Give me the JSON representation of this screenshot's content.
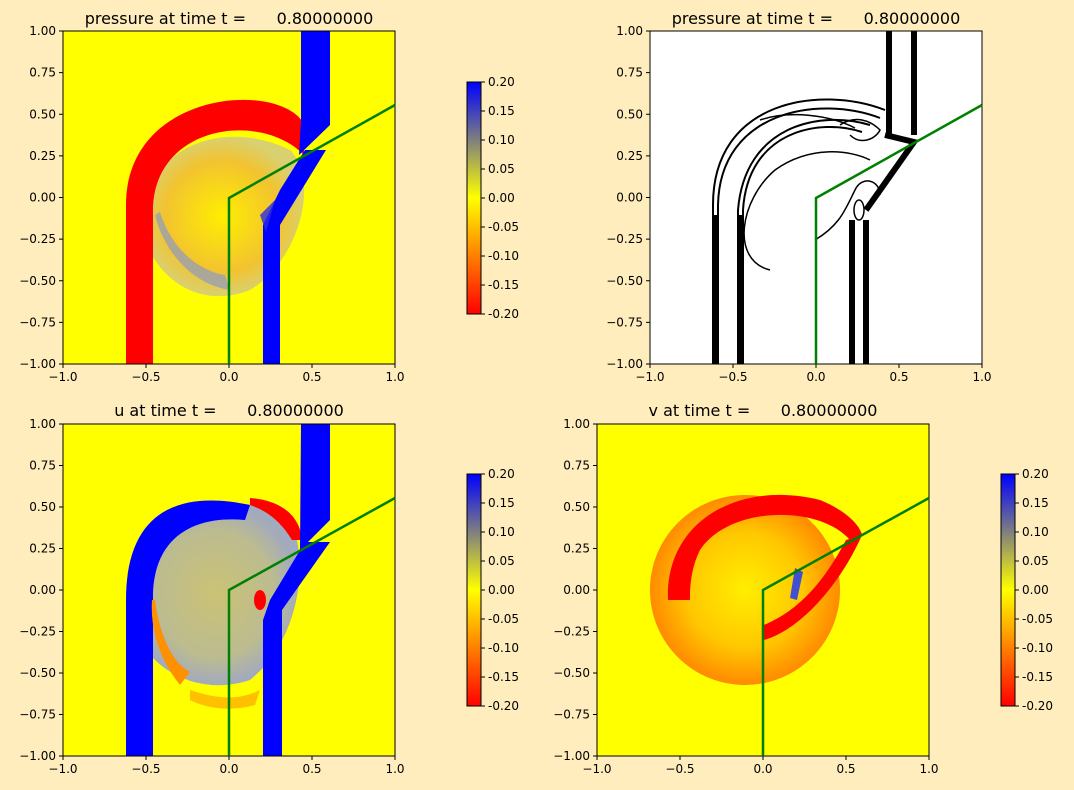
{
  "figure": {
    "background": "#ffedbd"
  },
  "colors": {
    "frame": "#000000",
    "boundary": "#008000",
    "colormap": [
      "#ff0000",
      "#ffff00",
      "#0000ff"
    ]
  },
  "colorbar": {
    "ticks": [
      "-0.20",
      "-0.15",
      "-0.10",
      "-0.05",
      "0.00",
      "0.05",
      "0.10",
      "0.15",
      "0.20"
    ],
    "vmin": -0.2,
    "vmax": 0.2
  },
  "chart_data": [
    {
      "id": "p-color",
      "type": "heatmap",
      "title": "pressure at time t =      0.80000000",
      "xlim": [
        -1,
        1
      ],
      "ylim": [
        -1,
        1
      ],
      "xticks": [
        "−1.0",
        "−0.5",
        "0.0",
        "0.5",
        "1.0"
      ],
      "yticks": [
        "−1.00",
        "−0.75",
        "−0.50",
        "−0.25",
        "0.00",
        "0.25",
        "0.50",
        "0.75",
        "1.00"
      ],
      "colorbar": true,
      "boundary": [
        [
          0,
          -1
        ],
        [
          0,
          0
        ],
        [
          1,
          0.55
        ]
      ]
    },
    {
      "id": "p-contour",
      "type": "contour",
      "title": "pressure at time t =      0.80000000",
      "xlim": [
        -1,
        1
      ],
      "ylim": [
        -1,
        1
      ],
      "xticks": [
        "−1.0",
        "−0.5",
        "0.0",
        "0.5",
        "1.0"
      ],
      "yticks": [
        "−1.00",
        "−0.75",
        "−0.50",
        "−0.25",
        "0.00",
        "0.25",
        "0.50",
        "0.75",
        "1.00"
      ],
      "colorbar": false,
      "boundary": [
        [
          0,
          -1
        ],
        [
          0,
          0
        ],
        [
          1,
          0.55
        ]
      ]
    },
    {
      "id": "u-color",
      "type": "heatmap",
      "title": "u at time t =      0.80000000",
      "xlim": [
        -1,
        1
      ],
      "ylim": [
        -1,
        1
      ],
      "xticks": [
        "−1.0",
        "−0.5",
        "0.0",
        "0.5",
        "1.0"
      ],
      "yticks": [
        "−1.00",
        "−0.75",
        "−0.50",
        "−0.25",
        "0.00",
        "0.25",
        "0.50",
        "0.75",
        "1.00"
      ],
      "colorbar": true,
      "boundary": [
        [
          0,
          -1
        ],
        [
          0,
          0
        ],
        [
          1,
          0.55
        ]
      ]
    },
    {
      "id": "v-color",
      "type": "heatmap",
      "title": "v at time t =      0.80000000",
      "xlim": [
        -1,
        1
      ],
      "ylim": [
        -1,
        1
      ],
      "xticks": [
        "−1.0",
        "−0.5",
        "0.0",
        "0.5",
        "1.0"
      ],
      "yticks": [
        "−1.00",
        "−0.75",
        "−0.50",
        "−0.25",
        "0.00",
        "0.25",
        "0.50",
        "0.75",
        "1.00"
      ],
      "colorbar": true,
      "boundary": [
        [
          0,
          -1
        ],
        [
          0,
          0
        ],
        [
          1,
          0.55
        ]
      ]
    }
  ]
}
